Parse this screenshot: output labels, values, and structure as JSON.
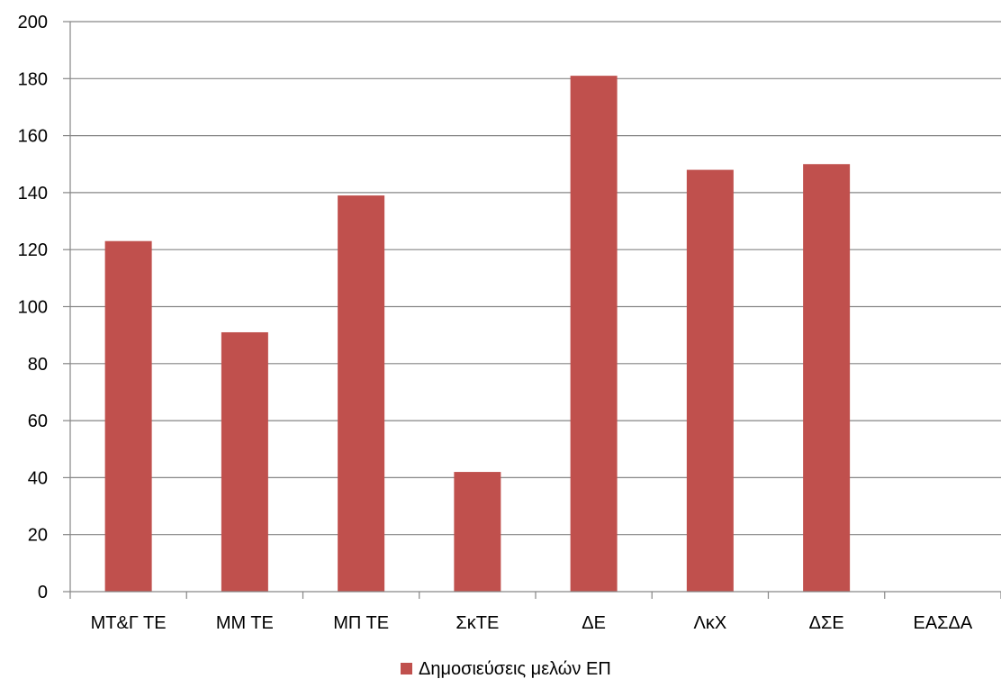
{
  "chart_data": {
    "type": "bar",
    "categories": [
      "ΜΤ&Γ ΤΕ",
      "ΜΜ ΤΕ",
      "ΜΠ ΤΕ",
      "ΣκΤΕ",
      "ΔΕ",
      "ΛκΧ",
      "ΔΣΕ",
      "ΕΑΣΔΑ"
    ],
    "series": [
      {
        "name": "Δημοσιεύσεις μελών ΕΠ",
        "values": [
          123,
          91,
          139,
          42,
          181,
          148,
          150,
          0
        ]
      }
    ],
    "title": "",
    "xlabel": "",
    "ylabel": "",
    "ylim": [
      0,
      200
    ],
    "yticks": [
      0,
      20,
      40,
      60,
      80,
      100,
      120,
      140,
      160,
      180,
      200
    ],
    "grid": true,
    "legend_position": "bottom",
    "colors": {
      "bar": "#C0504D",
      "grid": "#868686",
      "axis": "#868686"
    }
  }
}
